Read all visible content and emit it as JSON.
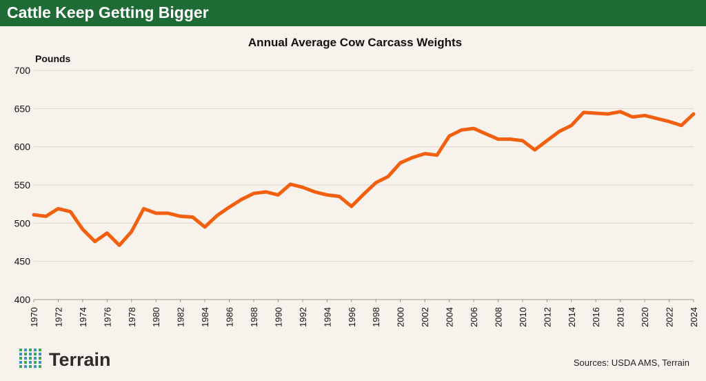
{
  "banner": {
    "title": "Cattle Keep Getting Bigger"
  },
  "colors": {
    "banner_bg": "#1e6b35",
    "background": "#f7f2ec",
    "line": "#f2600f",
    "grid": "#dcd7d1",
    "logo_dot_blue": "#3d8fc8",
    "logo_dot_green": "#3aa85a"
  },
  "chart_data": {
    "type": "line",
    "title": "Annual Average Cow Carcass Weights",
    "ylabel": "Pounds",
    "xlabel": "",
    "ylim": [
      400,
      700
    ],
    "yticks": [
      400,
      450,
      500,
      550,
      600,
      650,
      700
    ],
    "xlim": [
      1970,
      2024
    ],
    "xticks": [
      "1970",
      "1972",
      "1974",
      "1976",
      "1978",
      "1980",
      "1982",
      "1984",
      "1986",
      "1988",
      "1990",
      "1992",
      "1994",
      "1996",
      "1998",
      "2000",
      "2002",
      "2004",
      "2006",
      "2008",
      "2010",
      "2012",
      "2014",
      "2016",
      "2018",
      "2020",
      "2022",
      "2024"
    ],
    "grid": "horizontal",
    "series": [
      {
        "x": [
          1970,
          1971,
          1972,
          1973,
          1974,
          1975,
          1976,
          1977,
          1978,
          1979,
          1980,
          1981,
          1982,
          1983,
          1984,
          1985,
          1986,
          1987,
          1988,
          1989,
          1990,
          1991,
          1992,
          1993,
          1994,
          1995,
          1996,
          1997,
          1998,
          1999,
          2000,
          2001,
          2002,
          2003,
          2004,
          2005,
          2006,
          2007,
          2008,
          2009,
          2010,
          2011,
          2012,
          2013,
          2014,
          2015,
          2016,
          2017,
          2018,
          2019,
          2020,
          2021,
          2022,
          2023,
          2024
        ],
        "values": [
          511,
          509,
          519,
          515,
          492,
          476,
          487,
          471,
          489,
          519,
          513,
          513,
          509,
          508,
          495,
          510,
          521,
          531,
          539,
          541,
          537,
          551,
          547,
          541,
          537,
          535,
          522,
          538,
          553,
          561,
          579,
          586,
          591,
          589,
          614,
          622,
          624,
          617,
          610,
          610,
          608,
          596,
          608,
          620,
          628,
          645,
          644,
          643,
          646,
          639,
          641,
          637,
          633,
          628,
          643
        ]
      }
    ]
  },
  "logo": {
    "text": "Terrain"
  },
  "footer": {
    "sources": "Sources: USDA AMS, Terrain"
  }
}
